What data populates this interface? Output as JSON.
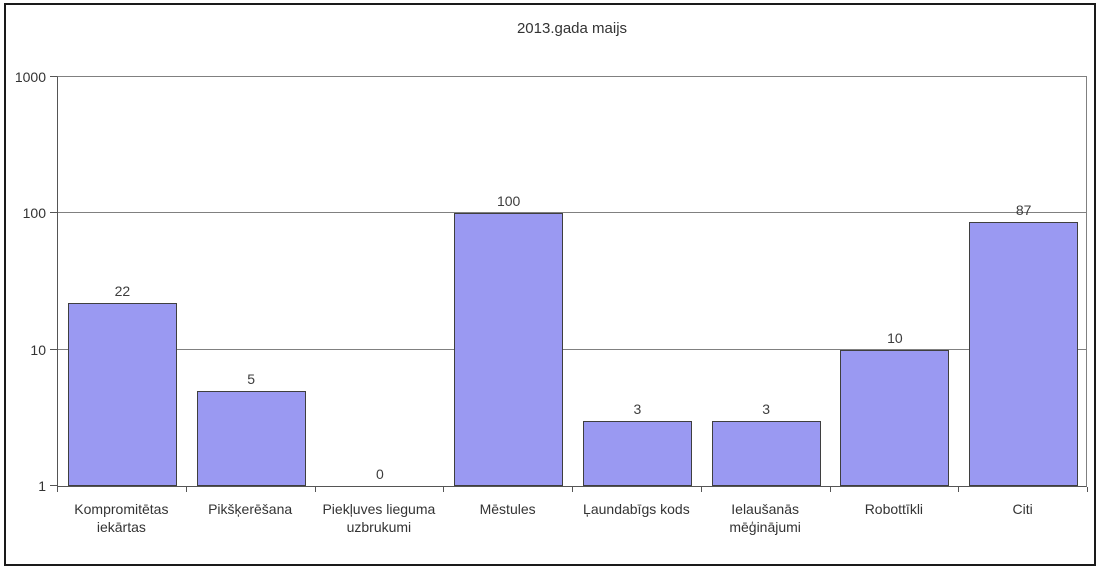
{
  "chart_data": {
    "type": "bar",
    "title": "2013.gada maijs",
    "categories": [
      "Kompromitētas iekārtas",
      "Pikšķerēšana",
      "Piekļuves lieguma uzbrukumi",
      "Mēstules",
      "Ļaundabīgs kods",
      "Ielaušanās mēģinājumi",
      "Robottīkli",
      "Citi"
    ],
    "values": [
      22,
      5,
      0,
      100,
      3,
      3,
      10,
      87
    ],
    "data_labels": [
      "22",
      "5",
      "0",
      "100",
      "3",
      "3",
      "10",
      "87"
    ],
    "xlabel": "",
    "ylabel": "",
    "yscale": "log",
    "ylim": [
      1,
      1000
    ],
    "yticks": [
      1,
      10,
      100,
      1000
    ],
    "ytick_labels": [
      "1",
      "10",
      "100",
      "1000"
    ],
    "grid": "horizontal-major",
    "legend": "none",
    "colors": {
      "bar_fill": "#9A99F2",
      "bar_border": "#3F3F3F",
      "gridline": "#808080",
      "axis": "#555555",
      "text": "#333333",
      "frame_border": "#1A1A1A",
      "background": "#FFFFFF"
    }
  }
}
